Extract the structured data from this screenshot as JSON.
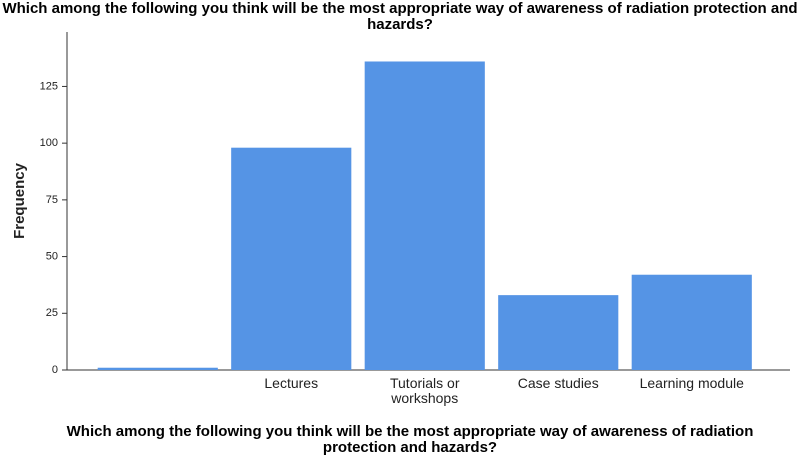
{
  "chart_data": {
    "type": "bar",
    "title": "Which among the following you think will be the most appropriate way of awareness of radiation protection and hazards?",
    "x_label": "Which among the following you think will be the most appropriate way of awareness of radiation protection and hazards?",
    "y_label": "Frequency",
    "categories": [
      null,
      "Lectures",
      "Tutorials or workshops",
      "Case studies",
      "Learning module"
    ],
    "values": [
      1,
      98,
      136,
      33,
      42
    ],
    "color": "#5594e5",
    "ylim": [
      0,
      149
    ],
    "yticks": [
      0,
      25,
      50,
      75,
      100,
      125
    ],
    "grid": false
  }
}
